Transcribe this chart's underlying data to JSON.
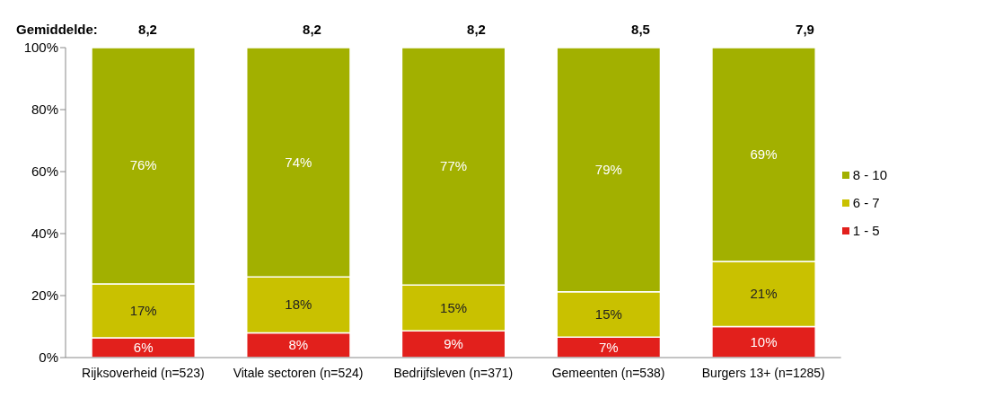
{
  "chart_data": {
    "type": "bar",
    "stacked": true,
    "categories": [
      "Rijksoverheid (n=523)",
      "Vitale sectoren (n=524)",
      "Bedrijfsleven (n=371)",
      "Gemeenten (n=538)",
      "Burgers 13+ (n=1285)"
    ],
    "series": [
      {
        "name": "1 - 5",
        "color": "#e2201c",
        "values": [
          6.4,
          8,
          8.6,
          6.6,
          10
        ],
        "value_labels": [
          "6%",
          "8%",
          "9%",
          "7%",
          "10%"
        ]
      },
      {
        "name": "6 - 7",
        "color": "#c9c100",
        "values": [
          17.4,
          18,
          14.8,
          14.6,
          21
        ],
        "value_labels": [
          "17%",
          "18%",
          "15%",
          "15%",
          "21%"
        ]
      },
      {
        "name": "8 - 10",
        "color": "#a2b000",
        "values": [
          76.2,
          74,
          76.6,
          78.8,
          69
        ],
        "value_labels": [
          "76%",
          "74%",
          "77%",
          "79%",
          "69%"
        ]
      }
    ],
    "ylim": [
      0,
      100
    ],
    "yticks": [
      {
        "value": 0,
        "label": "0%"
      },
      {
        "value": 20,
        "label": "20%"
      },
      {
        "value": 40,
        "label": "40%"
      },
      {
        "value": 60,
        "label": "60%"
      },
      {
        "value": 80,
        "label": "80%"
      },
      {
        "value": 100,
        "label": "100%"
      }
    ],
    "grid": false,
    "legend": "right",
    "annotations": [
      "Gemiddelde:",
      "8,2",
      "8,2",
      "8,2",
      "8,5",
      "7,9"
    ]
  }
}
